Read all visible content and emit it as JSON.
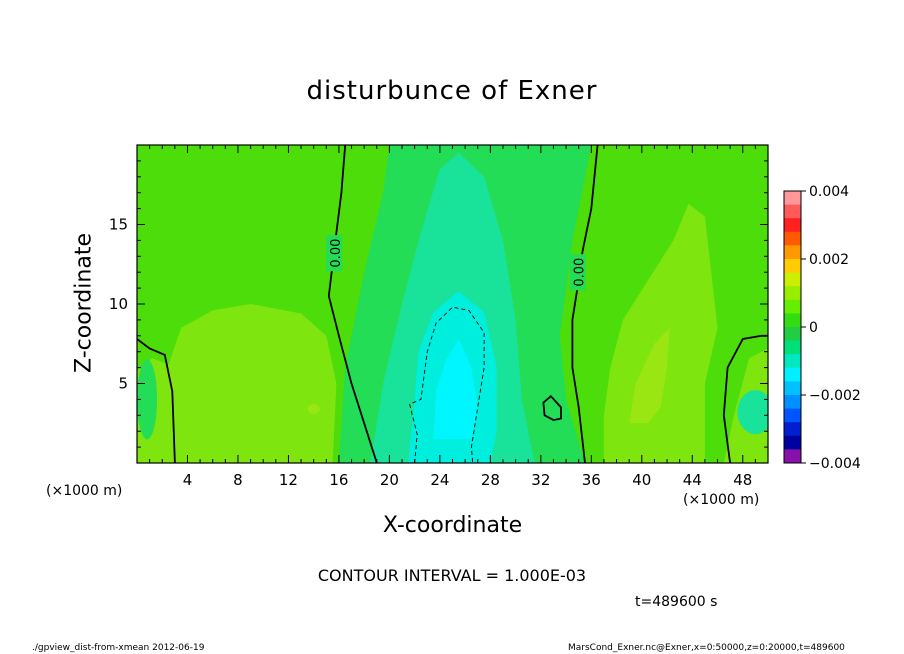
{
  "chart_data": {
    "type": "contour",
    "title": "disturbunce of Exner",
    "xlabel": "X-coordinate",
    "ylabel": "Z-coordinate",
    "x_unit": "(×1000 m)",
    "y_unit": "(×1000 m)",
    "xlim": [
      0,
      50
    ],
    "ylim": [
      0,
      20
    ],
    "xticks": [
      4,
      8,
      12,
      16,
      20,
      24,
      28,
      32,
      36,
      40,
      44,
      48
    ],
    "yticks": [
      5,
      10,
      15
    ],
    "contour_interval_text": "CONTOUR INTERVAL = 1.000E-03",
    "contour_labels": [
      {
        "text": "0.00",
        "x": 15.7,
        "z": 13.2
      },
      {
        "text": "0.00",
        "x": 35.0,
        "z": 12.0
      }
    ],
    "colorbar": {
      "ticks": [
        0.004,
        0.002,
        0,
        -0.002,
        -0.004
      ],
      "tick_labels": [
        "0.004",
        "0.002",
        "0",
        "−0.002",
        "−0.004"
      ],
      "colors": [
        "#ff9999",
        "#ff5a5a",
        "#ff2020",
        "#ff5a00",
        "#ff9900",
        "#ffcc00",
        "#ccee00",
        "#99ee00",
        "#66ee00",
        "#33dd11",
        "#22cc44",
        "#00e07a",
        "#00e8c0",
        "#00f0ff",
        "#00c0ff",
        "#0090ff",
        "#0055ff",
        "#0020d0",
        "#0000a0",
        "#8811aa"
      ]
    },
    "field_levels": {
      "min": -0.0012,
      "max": 0.0012,
      "background": "#4ddd0a",
      "positive_region": "#7ee50f",
      "weak_negative": "#22dd55",
      "negative": "#19e39a",
      "strong_negative": "#00eedd",
      "minimum": "#00f6ff"
    },
    "time_text": "t=489600 s"
  },
  "footer": {
    "left": "./gpview_dist-from-xmean  2012-06-19",
    "right": "MarsCond_Exner.nc@Exner,x=0:50000,z=0:20000,t=489600"
  }
}
